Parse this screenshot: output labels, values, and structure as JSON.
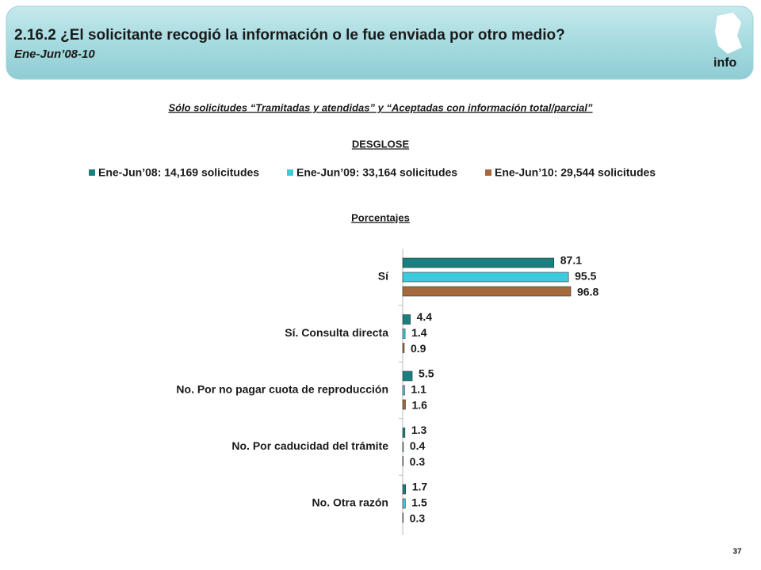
{
  "header": {
    "title": "2.16.2 ¿El solicitante recogió la información o le fue enviada por otro medio?",
    "subtitle": "Ene-Jun’08-10",
    "logo": "info"
  },
  "note": "Sólo solicitudes “Tramitadas y atendidas” y “Aceptadas con información total/parcial”",
  "section": "DESGLOSE",
  "units": "Porcentajes",
  "page_number": "37",
  "chart_data": {
    "type": "bar",
    "orientation": "horizontal",
    "categories": [
      "Sí",
      "Sí. Consulta directa",
      "No. Por no pagar cuota de reproducción",
      "No. Por caducidad del trámite",
      "No. Otra razón"
    ],
    "series": [
      {
        "name": "Ene-Jun’08: 14,169 solicitudes",
        "color": "#1a7f80",
        "values": [
          87.1,
          4.4,
          5.5,
          1.3,
          1.7
        ]
      },
      {
        "name": "Ene-Jun’09: 33,164 solicitudes",
        "color": "#3ccbdc",
        "values": [
          95.5,
          1.4,
          1.1,
          0.4,
          1.5
        ]
      },
      {
        "name": "Ene-Jun’10: 29,544 solicitudes",
        "color": "#a5693c",
        "values": [
          96.8,
          0.9,
          1.6,
          0.3,
          0.3
        ]
      }
    ],
    "legend": "top"
  }
}
